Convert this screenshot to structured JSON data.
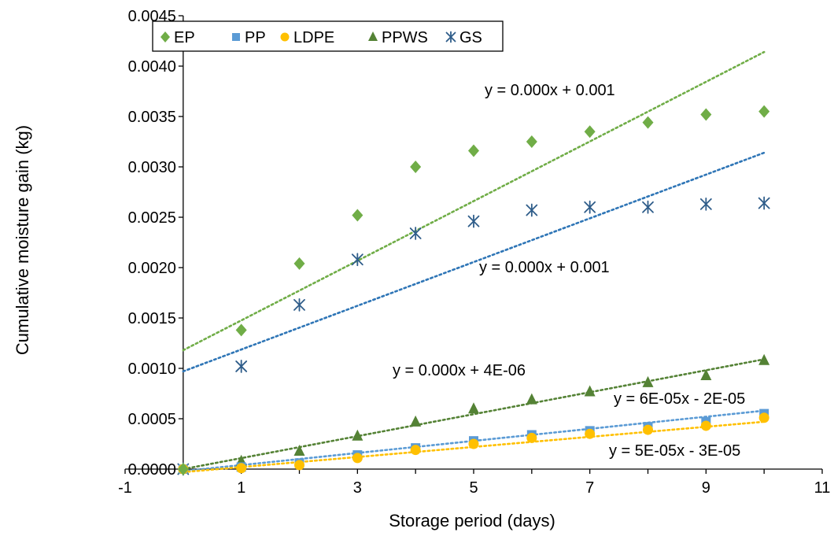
{
  "chart_data": {
    "type": "scatter",
    "xlabel": "Storage period (days)",
    "ylabel": "Cumulative moisture gain (kg)",
    "xlim": [
      -1,
      11
    ],
    "ylim": [
      0,
      0.0045
    ],
    "xticks": [
      "-1",
      "1",
      "3",
      "5",
      "7",
      "9",
      "11"
    ],
    "yticks": [
      "0.0000",
      "0.0005",
      "0.0010",
      "0.0015",
      "0.0020",
      "0.0025",
      "0.0030",
      "0.0035",
      "0.0040",
      "0.0045"
    ],
    "legend_position": "top-left",
    "x": [
      0,
      1,
      2,
      3,
      4,
      5,
      6,
      7,
      8,
      9,
      10
    ],
    "series": [
      {
        "name": "EP",
        "marker": "diamond",
        "color": "#70ad47",
        "values": [
          0,
          0.00138,
          0.00204,
          0.00252,
          0.003,
          0.00316,
          0.00325,
          0.00335,
          0.00344,
          0.00352,
          0.00355
        ],
        "trend": {
          "from": [
            0,
            0.00118
          ],
          "to": [
            10,
            0.00414
          ],
          "color": "#70ad47"
        },
        "equation": "y = 0.000x + 0.001"
      },
      {
        "name": "PP",
        "marker": "square",
        "color": "#5b9bd5",
        "values": [
          0,
          2e-05,
          6e-05,
          0.00014,
          0.00021,
          0.00028,
          0.00034,
          0.00038,
          0.00042,
          0.00047,
          0.00055
        ],
        "trend": {
          "from": [
            0,
            -2e-05
          ],
          "to": [
            10,
            0.00058
          ],
          "color": "#5b9bd5"
        },
        "equation": "y = 6E-05x - 2E-05"
      },
      {
        "name": "LDPE",
        "marker": "circle",
        "color": "#ffc000",
        "values": [
          0,
          1e-05,
          4e-05,
          0.00011,
          0.00019,
          0.00025,
          0.00031,
          0.00035,
          0.00039,
          0.00043,
          0.00051
        ],
        "trend": {
          "from": [
            0,
            -3e-05
          ],
          "to": [
            10,
            0.00047
          ],
          "color": "#ffc000"
        },
        "equation": "y = 5E-05x - 3E-05"
      },
      {
        "name": "PPWS",
        "marker": "triangle",
        "color": "#548235",
        "values": [
          0,
          8e-05,
          0.00018,
          0.00033,
          0.00047,
          0.0006,
          0.00069,
          0.00077,
          0.00086,
          0.00093,
          0.00108
        ],
        "trend": {
          "from": [
            0,
            0.0
          ],
          "to": [
            10,
            0.00109
          ],
          "color": "#548235"
        },
        "equation": "y = 0.000x + 4E-06"
      },
      {
        "name": "GS",
        "marker": "star",
        "color": "#2f5d8a",
        "values": [
          0,
          0.00102,
          0.00163,
          0.00208,
          0.00234,
          0.00246,
          0.00257,
          0.0026,
          0.0026,
          0.00263,
          0.00264
        ],
        "trend": {
          "from": [
            0,
            0.00097
          ],
          "to": [
            10,
            0.00314
          ],
          "color": "#2e75b6"
        },
        "equation": "y = 0.000x + 0.001"
      }
    ]
  }
}
